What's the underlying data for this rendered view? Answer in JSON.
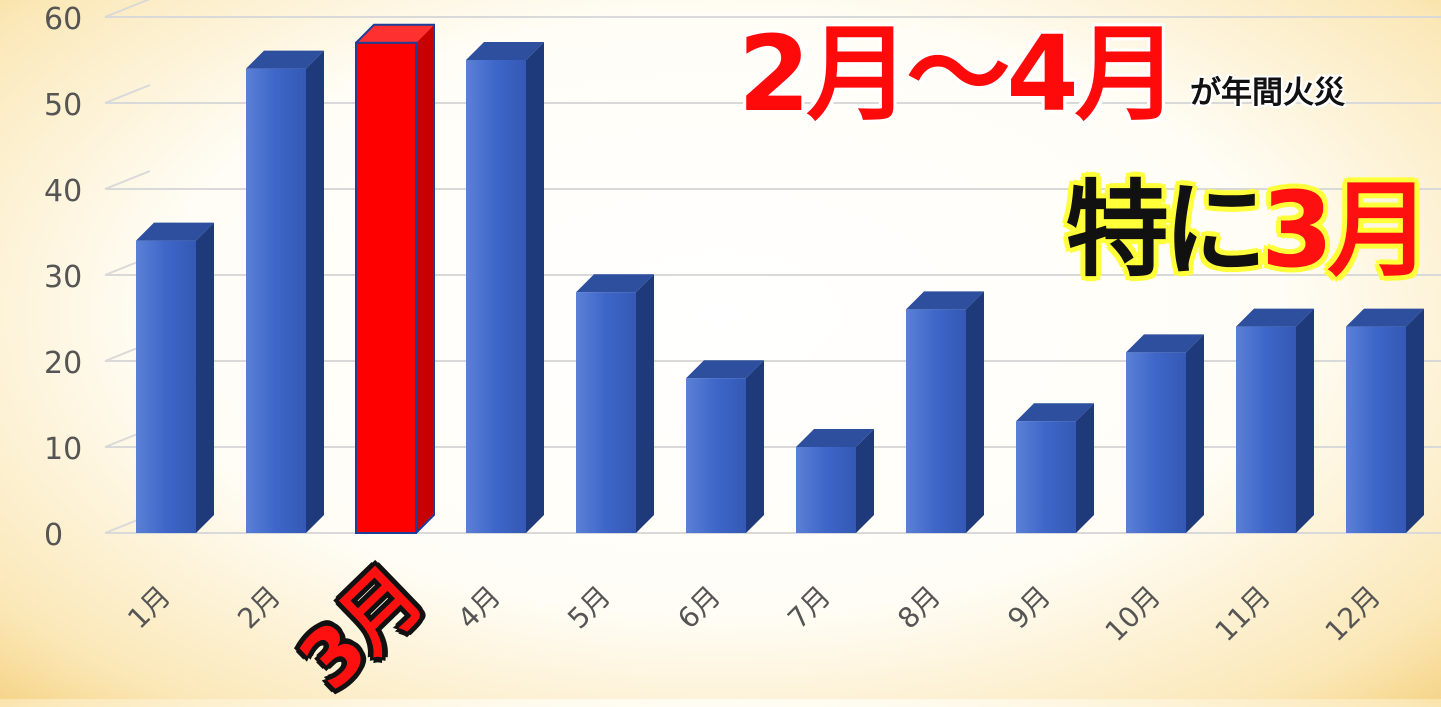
{
  "overlay": {
    "headline": "2月～4月",
    "headline_sub": "が年間火災",
    "emphasis_prefix": "特に",
    "emphasis_highlight": "3月",
    "highlight_category_label": "3月"
  },
  "colors": {
    "bar": "#3f66c7",
    "bar_side": "#1f3a7a",
    "bar_top": "#2d4f9e",
    "highlight": "#ff0000",
    "highlight_side": "#c80000",
    "grid": "#d9d9d9",
    "tick_text": "#555555"
  },
  "chart_data": {
    "type": "bar",
    "categories": [
      "1月",
      "2月",
      "3月",
      "4月",
      "5月",
      "6月",
      "7月",
      "8月",
      "9月",
      "10月",
      "11月",
      "12月"
    ],
    "values": [
      34,
      54,
      57,
      55,
      28,
      18,
      10,
      26,
      13,
      21,
      24,
      24
    ],
    "highlight_index": 2,
    "ylim": [
      0,
      60
    ],
    "yticks": [
      0,
      10,
      20,
      30,
      40,
      50,
      60
    ],
    "grid": true,
    "title": "",
    "xlabel": "",
    "ylabel": ""
  }
}
